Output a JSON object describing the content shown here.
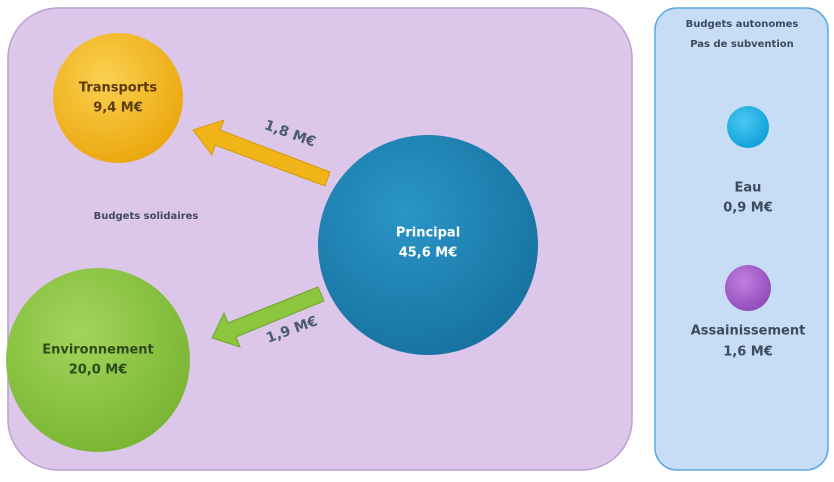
{
  "panels": {
    "solidaires": {
      "label": "Budgets solidaires"
    },
    "autonomes": {
      "title": [
        "Budgets autonomes",
        "Pas de subvention"
      ]
    }
  },
  "nodes": [
    {
      "label": "Transports",
      "value": "9,4 M€"
    },
    {
      "label": "Principal",
      "value": "45,6 M€"
    },
    {
      "label": "Environnement",
      "value": "20,0 M€"
    },
    {
      "label": "Eau",
      "value": "0,9 M€"
    },
    {
      "label": "Assainissement",
      "value": "1,6 M€"
    }
  ],
  "transfers": [
    {
      "label": "1,8 M€"
    },
    {
      "label": "1,9 M€"
    }
  ]
}
